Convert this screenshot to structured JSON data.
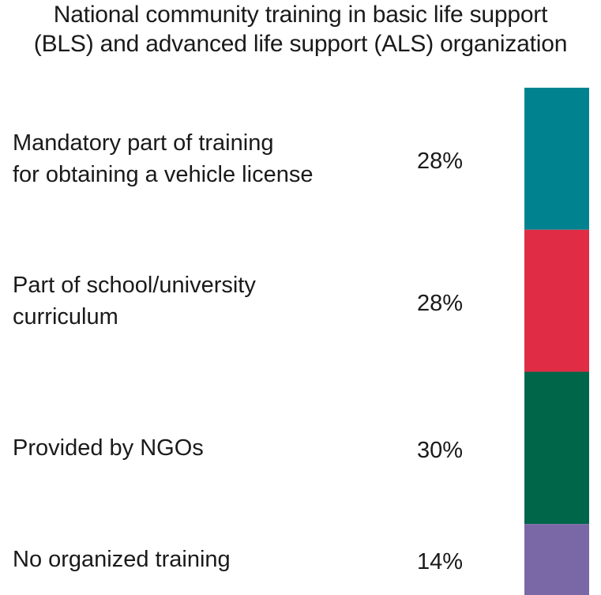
{
  "chart_data": {
    "type": "bar",
    "subtype": "100% stacked single bar",
    "title_lines": [
      "National community training in basic life support",
      "(BLS) and advanced life support (ALS) organization"
    ],
    "categories": [
      "Mandatory part of training\nfor obtaining a vehicle license",
      "Part of school/university\ncurriculum",
      "Provided by NGOs",
      "No organized training"
    ],
    "values": [
      28,
      28,
      30,
      14
    ],
    "value_labels": [
      "28%",
      "28%",
      "30%",
      "14%"
    ],
    "colors": [
      "#00838f",
      "#e02d45",
      "#00664a",
      "#7a68a6"
    ],
    "unit": "%",
    "legend": "none",
    "grid": false
  }
}
